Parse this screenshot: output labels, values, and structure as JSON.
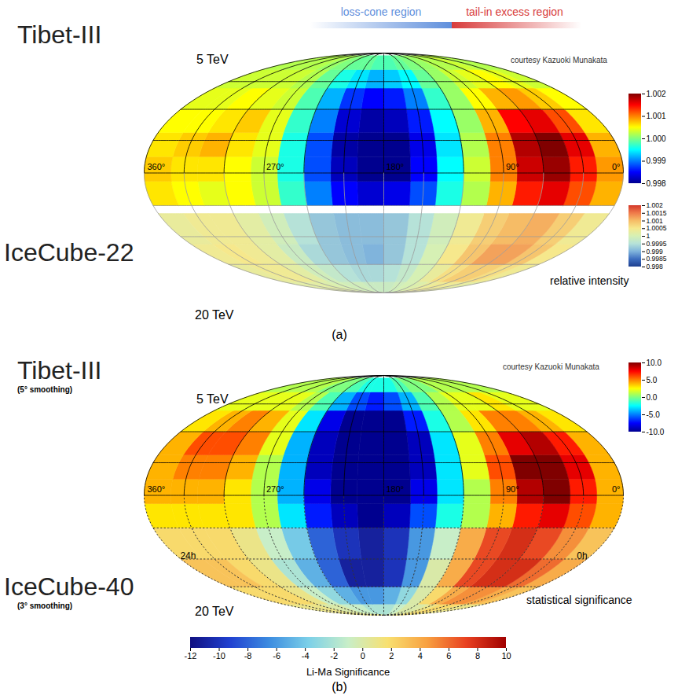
{
  "chart_data": [
    {
      "type": "heatmap",
      "panel_label": "(a)",
      "annotations": [
        {
          "text": "loss-cone region",
          "color": "#5f8fdc"
        },
        {
          "text": "tail-in excess region",
          "color": "#d83c3c"
        }
      ],
      "credit": "courtesy Kazuoki Munakata",
      "colorbar_title": "relative intensity",
      "xlim": [
        360,
        0
      ],
      "ylim": [
        -90,
        90
      ],
      "xticks": [
        {
          "value": 360,
          "label": "360°"
        },
        {
          "value": 270,
          "label": "270°"
        },
        {
          "value": 180,
          "label": "180°"
        },
        {
          "value": 90,
          "label": "90°"
        },
        {
          "value": 0,
          "label": "0°"
        }
      ],
      "meridians": [
        0,
        30,
        60,
        90,
        120,
        150,
        180,
        210,
        240,
        270,
        300,
        330,
        360
      ],
      "parallels": [
        -60,
        -40,
        -20,
        0,
        20,
        40,
        60
      ],
      "ra_edges": [
        0,
        20,
        40,
        60,
        80,
        100,
        120,
        140,
        160,
        180,
        200,
        220,
        240,
        260,
        280,
        300,
        320,
        340,
        360
      ],
      "maps": [
        {
          "title": "Tibet-III",
          "energy": "5 TeV",
          "dec_edges": [
            -20,
            -5,
            10,
            25,
            40,
            55,
            70,
            85
          ],
          "values": [
            [
              1.0008,
              1.0012,
              1.0016,
              1.0014,
              1.0008,
              1.0002,
              0.9996,
              0.9988,
              0.9984,
              0.9983,
              0.9985,
              0.999,
              0.9997,
              1.0003,
              1.0005,
              1.0004,
              1.0005,
              1.0006
            ],
            [
              1.0009,
              1.0014,
              1.0019,
              1.0017,
              1.001,
              1.0003,
              0.9995,
              0.9985,
              0.998,
              0.998,
              0.9982,
              0.9988,
              0.9996,
              1.0003,
              1.0005,
              1.0006,
              1.0006,
              1.0007
            ],
            [
              1.0008,
              1.0016,
              1.002,
              1.0018,
              1.001,
              1.0002,
              0.9994,
              0.9984,
              0.998,
              0.998,
              0.9981,
              0.9988,
              0.9996,
              1.0004,
              1.0006,
              1.0008,
              1.0007,
              1.0006
            ],
            [
              1.0006,
              1.0012,
              1.0016,
              1.0015,
              1.0008,
              1.0001,
              0.9995,
              0.9986,
              0.9982,
              0.9981,
              0.9983,
              0.999,
              0.9997,
              1.0004,
              1.0007,
              1.0006,
              1.0005,
              1.0005
            ],
            [
              1.0005,
              1.0007,
              1.0009,
              1.0008,
              1.0005,
              1.0001,
              0.9997,
              0.999,
              0.9986,
              0.9985,
              0.9987,
              0.9992,
              0.9998,
              1.0003,
              1.0004,
              1.0005,
              1.0004,
              1.0004
            ],
            [
              1.0003,
              1.0004,
              1.0005,
              1.0004,
              1.0003,
              1.0001,
              0.9999,
              0.9995,
              0.9993,
              0.9992,
              0.9994,
              0.9996,
              0.9999,
              1.0002,
              1.0003,
              1.0003,
              1.0003,
              1.0003
            ],
            [
              1.0002,
              1.0002,
              1.0003,
              1.0002,
              1.0002,
              1.0001,
              1,
              0.9999,
              0.9998,
              0.9998,
              0.9999,
              0.9999,
              1,
              1.0001,
              1.0002,
              1.0002,
              1.0002,
              1.0002
            ]
          ],
          "colorbar": {
            "range": [
              0.998,
              1.002
            ],
            "ticks": [
              0.998,
              0.999,
              {
                "value": 1,
                "label": "1.000"
              },
              1.001,
              1.002
            ],
            "colors": [
              "#00008f",
              "#0000ff",
              "#0080ff",
              "#00ffff",
              "#80ff80",
              "#ffff00",
              "#ff8000",
              "#ff0000",
              "#800000"
            ]
          }
        },
        {
          "title": "IceCube-22",
          "energy": "20 TeV",
          "dec_edges": [
            -90,
            -75,
            -60,
            -45,
            -25
          ],
          "values": [
            [
              1.0002,
              1.0003,
              1.0004,
              1.0004,
              1.0003,
              1.0001,
              1,
              0.9999,
              0.9998,
              0.9998,
              0.9998,
              0.9999,
              0.9999,
              1,
              1.0001,
              1.0002,
              1.0002,
              1.0002
            ],
            [
              1.0004,
              1.0006,
              1.0008,
              1.0008,
              1.0006,
              1.0003,
              1,
              0.9997,
              0.9995,
              0.9994,
              0.9994,
              0.9995,
              0.9997,
              0.9999,
              1.0002,
              1.0004,
              1.0004,
              1.0003
            ],
            [
              1.0005,
              1.0009,
              1.0012,
              1.0012,
              1.0009,
              1.0005,
              1,
              0.9995,
              0.9992,
              0.999,
              0.9991,
              0.9992,
              0.9994,
              0.9998,
              1.0002,
              1.0004,
              1.0005,
              1.0004
            ],
            [
              1.0004,
              1.0008,
              1.0011,
              1.001,
              1.0008,
              1.0004,
              0.9999,
              0.9995,
              0.9992,
              0.9991,
              0.9991,
              0.9992,
              0.9995,
              0.9999,
              1.0002,
              1.0004,
              1.0004,
              1.0003
            ]
          ],
          "colorbar": {
            "range": [
              0.998,
              1.002
            ],
            "ticks": [
              0.998,
              0.9985,
              0.999,
              0.9995,
              1,
              1.0005,
              1.001,
              1.0015,
              1.002
            ],
            "colors": [
              "#1e3f8f",
              "#3e6fc0",
              "#80b4dc",
              "#b6e2d8",
              "#d6f0b4",
              "#f6e88c",
              "#f6bc66",
              "#ef7a4a",
              "#d4382a"
            ]
          }
        }
      ]
    },
    {
      "type": "heatmap",
      "panel_label": "(b)",
      "credit": "courtesy Kazuoki Munakata",
      "colorbar_title": "statistical significance",
      "xlim": [
        360,
        0
      ],
      "ylim": [
        -90,
        90
      ],
      "xticks": [
        {
          "value": 360,
          "label": "360°"
        },
        {
          "value": 270,
          "label": "270°"
        },
        {
          "value": 180,
          "label": "180°"
        },
        {
          "value": 90,
          "label": "90°"
        },
        {
          "value": 0,
          "label": "0°"
        }
      ],
      "meridians": [
        0,
        30,
        60,
        90,
        120,
        150,
        180,
        210,
        240,
        270,
        300,
        330,
        360
      ],
      "parallels": [
        -60,
        -40,
        -20,
        0,
        20,
        40,
        60
      ],
      "ra_edges": [
        0,
        20,
        40,
        60,
        80,
        100,
        120,
        140,
        160,
        180,
        200,
        220,
        240,
        260,
        280,
        300,
        320,
        340,
        360
      ],
      "maps": [
        {
          "title": "Tibet-III",
          "smoothing": "(5° smoothing)",
          "energy": "5 TeV",
          "dec_edges": [
            -20,
            -5,
            10,
            25,
            40,
            55,
            70,
            85
          ],
          "values": [
            [
              4,
              6,
              8,
              7,
              4,
              1,
              -2,
              -6,
              -9,
              -10,
              -9,
              -7,
              -3,
              1,
              3,
              3,
              3,
              3
            ],
            [
              4,
              7,
              10,
              9,
              5,
              1,
              -3,
              -8,
              -10,
              -10,
              -10,
              -8,
              -4,
              1,
              3,
              4,
              4,
              4
            ],
            [
              4,
              8,
              10,
              10,
              6,
              2,
              -3,
              -9,
              -10,
              -10,
              -10,
              -9,
              -4,
              1,
              4,
              5,
              5,
              4
            ],
            [
              4,
              7,
              9,
              8,
              5,
              2,
              -3,
              -9,
              -10,
              -10,
              -10,
              -9,
              -4,
              2,
              5,
              6,
              6,
              4
            ],
            [
              3,
              4,
              5,
              5,
              3,
              1,
              -2,
              -7,
              -10,
              -10,
              -10,
              -8,
              -3,
              2,
              4,
              5,
              4,
              3
            ],
            [
              2,
              2,
              3,
              2,
              2,
              1,
              -1,
              -4,
              -6,
              -7,
              -6,
              -4,
              -1,
              1,
              2,
              2,
              2,
              2
            ],
            [
              1,
              1,
              1,
              1,
              1,
              0,
              0,
              -1,
              -2,
              -2,
              -2,
              -1,
              0,
              0,
              1,
              1,
              1,
              1
            ]
          ],
          "colorbar": {
            "range": [
              -10,
              10
            ],
            "ticks": [
              {
                "value": 10,
                "label": "10.0"
              },
              {
                "value": 5,
                "label": "5.0"
              },
              {
                "value": 0,
                "label": "0.0"
              },
              {
                "value": -5,
                "label": "-5.0"
              },
              {
                "value": -10,
                "label": "-10.0"
              }
            ],
            "colors": [
              "#00008f",
              "#0000ff",
              "#0080ff",
              "#00ffff",
              "#80ff80",
              "#ffff00",
              "#ff8000",
              "#ff0000",
              "#800000"
            ]
          }
        },
        {
          "title": "IceCube-40",
          "smoothing": "(3° smoothing)",
          "energy": "20 TeV",
          "hour_labels": [
            {
              "value": 360,
              "label": "24h"
            },
            {
              "value": 0,
              "label": "0h"
            }
          ],
          "dec_edges": [
            -90,
            -75,
            -60,
            -40,
            -20
          ],
          "values": [
            [
              1,
              1,
              2,
              2,
              1,
              0,
              0,
              -1,
              -2,
              -2,
              -2,
              -1,
              -1,
              0,
              0,
              1,
              1,
              1
            ],
            [
              3,
              4,
              5,
              5,
              4,
              2,
              0,
              -3,
              -5,
              -6,
              -6,
              -5,
              -3,
              -1,
              1,
              2,
              2,
              2
            ],
            [
              4,
              6,
              8,
              8,
              7,
              4,
              0,
              -6,
              -10,
              -11,
              -11,
              -8,
              -5,
              -2,
              1,
              2,
              3,
              3
            ],
            [
              3,
              5,
              7,
              8,
              7,
              4,
              -1,
              -6,
              -10,
              -11,
              -10,
              -8,
              -4,
              -1,
              1,
              2,
              2,
              2
            ]
          ],
          "colorbar": {
            "range": [
              -12,
              10
            ],
            "orientation": "horizontal",
            "label": "Li-Ma Significance",
            "ticks": [
              -12,
              -10,
              -8,
              -6,
              -4,
              -2,
              0,
              2,
              4,
              6,
              8,
              10
            ],
            "colors": [
              "#101080",
              "#2040d0",
              "#3c8ce0",
              "#7cd0e8",
              "#c8eec8",
              "#f8e070",
              "#f8a040",
              "#e84020",
              "#a00000"
            ]
          }
        }
      ]
    }
  ]
}
